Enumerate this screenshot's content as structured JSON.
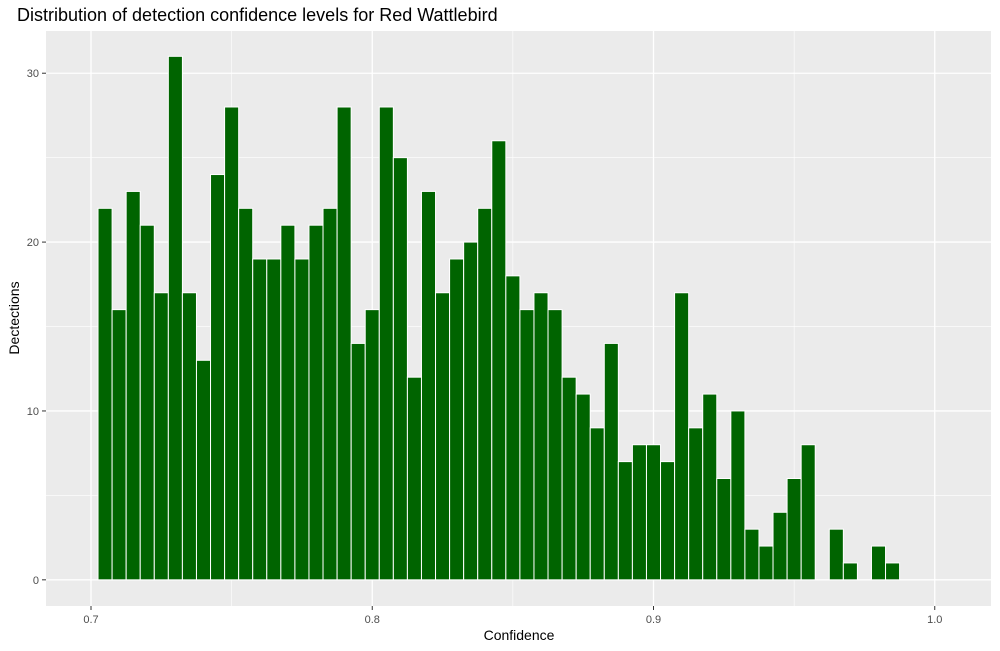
{
  "chart_data": {
    "type": "bar",
    "title": "Distribution of detection confidence levels for Red Wattlebird",
    "xlabel": "Confidence",
    "ylabel": "Dectections",
    "xlim": [
      0.684,
      1.02
    ],
    "ylim": [
      -1.55,
      32.5
    ],
    "x_ticks": [
      0.7,
      0.8,
      0.9,
      1.0
    ],
    "x_tick_labels": [
      "0.7",
      "0.8",
      "0.9",
      "1.0"
    ],
    "y_ticks": [
      0,
      10,
      20,
      30
    ],
    "y_tick_labels": [
      "0",
      "10",
      "20",
      "30"
    ],
    "bin_width": 0.005,
    "bin_starts": [
      0.7025,
      0.7075,
      0.7125,
      0.7175,
      0.7225,
      0.7275,
      0.7325,
      0.7375,
      0.7425,
      0.7475,
      0.7525,
      0.7575,
      0.7625,
      0.7675,
      0.7725,
      0.7775,
      0.7825,
      0.7875,
      0.7925,
      0.7975,
      0.8025,
      0.8075,
      0.8125,
      0.8175,
      0.8225,
      0.8275,
      0.8325,
      0.8375,
      0.8425,
      0.8475,
      0.8525,
      0.8575,
      0.8625,
      0.8675,
      0.8725,
      0.8775,
      0.8825,
      0.8875,
      0.8925,
      0.8975,
      0.9025,
      0.9075,
      0.9125,
      0.9175,
      0.9225,
      0.9275,
      0.9325,
      0.9375,
      0.9425,
      0.9475,
      0.9525,
      0.9575,
      0.9625,
      0.9675,
      0.9725,
      0.9775,
      0.9825
    ],
    "values": [
      22,
      16,
      23,
      21,
      17,
      31,
      17,
      13,
      24,
      28,
      22,
      19,
      19,
      21,
      19,
      21,
      22,
      28,
      14,
      16,
      28,
      25,
      12,
      23,
      17,
      19,
      20,
      22,
      26,
      18,
      16,
      17,
      16,
      12,
      11,
      9,
      14,
      7,
      8,
      8,
      7,
      17,
      9,
      11,
      6,
      10,
      3,
      2,
      4,
      6,
      8,
      0,
      3,
      1,
      0,
      2,
      1
    ],
    "bar_color": "#006400",
    "bar_edge_color": "#ffffff",
    "panel_background": "#ebebeb",
    "grid_major_color": "#ffffff",
    "grid": true,
    "legend": "none"
  }
}
